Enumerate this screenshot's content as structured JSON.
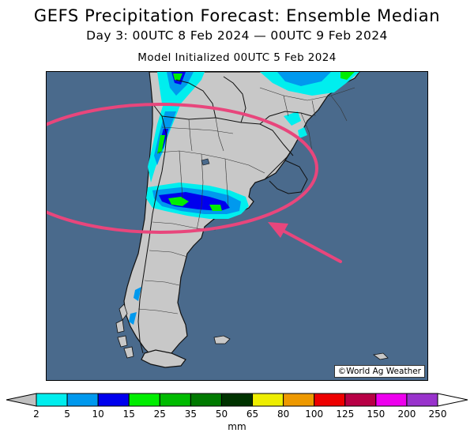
{
  "header": {
    "title": "GEFS Precipitation Forecast: Ensemble Median",
    "subtitle": "Day 3: 00UTC 8 Feb 2024 — 00UTC 9 Feb 2024",
    "init": "Model Initialized 00UTC 5 Feb 2024"
  },
  "map": {
    "credit": "©World Ag Weather",
    "ocean_color": "#4a6a8c",
    "land_color": "#c8c8c8",
    "annotation_color": "#e8467c"
  },
  "legend": {
    "unit": "mm",
    "ticks": [
      "2",
      "5",
      "10",
      "15",
      "25",
      "35",
      "50",
      "65",
      "80",
      "100",
      "125",
      "150",
      "200",
      "250"
    ],
    "colors": [
      "#00eeee",
      "#0099ee",
      "#0000ee",
      "#00ee00",
      "#00bb00",
      "#007a00",
      "#003300",
      "#eeee00",
      "#ee9900",
      "#ee0000",
      "#b80045",
      "#ee00ee",
      "#9933cc"
    ],
    "underflow_color": "#c0c0c0",
    "overflow_color": "#ffffff"
  }
}
